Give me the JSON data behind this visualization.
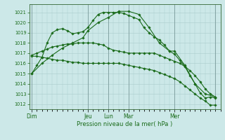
{
  "title": "",
  "xlabel": "Pression niveau de la mer( hPa )",
  "background_color": "#cce8e8",
  "grid_color": "#aacccc",
  "line_color": "#1a6b1a",
  "ylim": [
    1011.5,
    1021.8
  ],
  "yticks": [
    1012,
    1013,
    1014,
    1015,
    1016,
    1017,
    1018,
    1019,
    1020,
    1021
  ],
  "day_labels": [
    "Dim",
    "",
    "",
    "Jeu",
    "Lun",
    "",
    "",
    "Mar",
    "",
    "Mer"
  ],
  "day_tick_labels": [
    "Dim",
    "Jeu",
    "Lun",
    "Mar",
    "Mer"
  ],
  "day_tick_x": [
    0,
    11,
    15,
    19,
    28
  ],
  "xlim": [
    -0.5,
    37
  ],
  "lines": [
    {
      "x": [
        0,
        1,
        2,
        3,
        4,
        5,
        6,
        7,
        8,
        9,
        10,
        11,
        12,
        13,
        14,
        15,
        16,
        17,
        18,
        19,
        20,
        21,
        22,
        23,
        24,
        25,
        26,
        27,
        28,
        29,
        30,
        31,
        32,
        33,
        34,
        35,
        36
      ],
      "y": [
        1015.0,
        1015.8,
        1016.6,
        1018.0,
        1019.0,
        1019.3,
        1019.4,
        1019.2,
        1018.9,
        1019.0,
        1019.1,
        1019.5,
        1020.2,
        1020.8,
        1021.0,
        1021.0,
        1021.0,
        1021.0,
        1020.9,
        1020.7,
        1020.5,
        1020.3,
        1019.5,
        1019.0,
        1018.6,
        1018.3,
        1017.8,
        1017.2,
        1016.9,
        1016.3,
        1015.7,
        1014.8,
        1014.0,
        1013.1,
        1012.6,
        1012.7,
        1012.6
      ]
    },
    {
      "x": [
        0,
        1,
        2,
        3,
        4,
        5,
        6,
        7,
        8,
        9,
        10,
        11,
        12,
        13,
        14,
        15,
        16,
        17,
        18,
        19,
        20,
        21,
        22,
        23,
        24,
        25,
        26,
        27,
        28,
        29,
        30,
        31,
        32,
        33,
        34,
        35,
        36
      ],
      "y": [
        1016.8,
        1017.0,
        1017.2,
        1017.4,
        1017.6,
        1017.7,
        1017.8,
        1017.9,
        1017.9,
        1018.0,
        1018.0,
        1018.0,
        1018.0,
        1017.9,
        1017.8,
        1017.5,
        1017.3,
        1017.2,
        1017.1,
        1017.0,
        1017.0,
        1017.0,
        1017.0,
        1017.0,
        1017.0,
        1016.8,
        1016.6,
        1016.4,
        1016.2,
        1016.0,
        1015.7,
        1015.3,
        1014.8,
        1014.2,
        1013.5,
        1013.0,
        1012.7
      ]
    },
    {
      "x": [
        0,
        1,
        2,
        3,
        4,
        5,
        6,
        7,
        8,
        9,
        10,
        11,
        12,
        13,
        14,
        15,
        16,
        17,
        18,
        19,
        20,
        21,
        22,
        23,
        24,
        25,
        26,
        27,
        28,
        29,
        30,
        31,
        32,
        33,
        34,
        35,
        36
      ],
      "y": [
        1016.7,
        1016.7,
        1016.6,
        1016.5,
        1016.4,
        1016.3,
        1016.3,
        1016.2,
        1016.1,
        1016.1,
        1016.0,
        1016.0,
        1016.0,
        1016.0,
        1016.0,
        1016.0,
        1016.0,
        1016.0,
        1015.9,
        1015.8,
        1015.7,
        1015.6,
        1015.5,
        1015.4,
        1015.3,
        1015.1,
        1014.9,
        1014.7,
        1014.5,
        1014.2,
        1013.8,
        1013.4,
        1013.0,
        1012.6,
        1012.3,
        1011.9,
        1011.9
      ]
    },
    {
      "x": [
        0,
        2,
        4,
        6,
        8,
        10,
        11,
        13,
        15,
        17,
        19,
        21,
        23,
        25,
        27,
        28,
        30,
        32,
        34,
        36
      ],
      "y": [
        1015.0,
        1016.0,
        1016.8,
        1017.5,
        1018.0,
        1018.5,
        1019.2,
        1020.0,
        1020.5,
        1021.1,
        1021.1,
        1020.8,
        1019.5,
        1018.0,
        1017.2,
        1017.2,
        1015.8,
        1014.0,
        1013.0,
        1012.7
      ]
    }
  ],
  "vline_positions": [
    0,
    11,
    15,
    19,
    28,
    36
  ],
  "vline_color": "#888888"
}
